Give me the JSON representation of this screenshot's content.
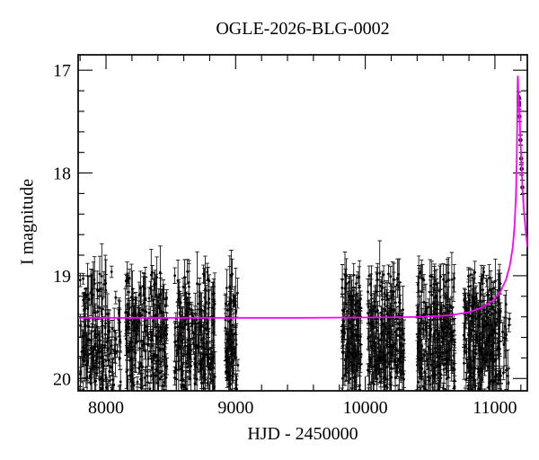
{
  "chart_data": {
    "type": "scatter",
    "title": "OGLE-2026-BLG-0002",
    "xlabel": "HJD - 2450000",
    "ylabel": "I magnitude",
    "xlim": [
      7785,
      11250
    ],
    "ylim_mag": [
      20.12,
      16.85
    ],
    "y_axis_inverted": true,
    "x_ticks_major": [
      8000,
      9000,
      10000,
      11000
    ],
    "x_tick_minor_step": 200,
    "y_ticks_major": [
      17,
      18,
      19,
      20
    ],
    "y_tick_minor_step": 0.2,
    "baseline_mag": 19.41,
    "peak_mag": 17.06,
    "peak_hjd": 11176,
    "colors": {
      "model_curve": "#ff00ff",
      "data_points": "#000000",
      "background": "#ffffff",
      "frame": "#000000"
    },
    "seasons": [
      {
        "hjd_start": 7800,
        "hjd_end": 8115,
        "n": 190
      },
      {
        "hjd_start": 8150,
        "hjd_end": 8470,
        "n": 230
      },
      {
        "hjd_start": 8530,
        "hjd_end": 8840,
        "n": 230
      },
      {
        "hjd_start": 8920,
        "hjd_end": 9020,
        "n": 85
      },
      {
        "hjd_start": 9820,
        "hjd_end": 9970,
        "n": 140
      },
      {
        "hjd_start": 10020,
        "hjd_end": 10300,
        "n": 240
      },
      {
        "hjd_start": 10400,
        "hjd_end": 10690,
        "n": 250
      },
      {
        "hjd_start": 10760,
        "hjd_end": 11048,
        "n": 265
      },
      {
        "hjd_start": 11055,
        "hjd_end": 11120,
        "n": 14
      }
    ],
    "season_mag_mean": 19.63,
    "season_mag_sigma": 0.32,
    "model_curve": [
      [
        7785,
        19.41
      ],
      [
        9500,
        19.41
      ],
      [
        10200,
        19.405
      ],
      [
        10450,
        19.4
      ],
      [
        10650,
        19.385
      ],
      [
        10800,
        19.355
      ],
      [
        10900,
        19.31
      ],
      [
        10980,
        19.245
      ],
      [
        11040,
        19.16
      ],
      [
        11085,
        19.04
      ],
      [
        11115,
        18.9
      ],
      [
        11138,
        18.72
      ],
      [
        11152,
        18.5
      ],
      [
        11162,
        18.22
      ],
      [
        11168,
        17.9
      ],
      [
        11172,
        17.5
      ],
      [
        11174.5,
        17.18
      ],
      [
        11176,
        17.06
      ],
      [
        11178,
        17.1
      ],
      [
        11181,
        17.22
      ],
      [
        11186,
        17.32
      ],
      [
        11191,
        17.47
      ],
      [
        11197,
        17.68
      ],
      [
        11204,
        17.89
      ],
      [
        11212,
        18.13
      ],
      [
        11222,
        18.34
      ],
      [
        11233,
        18.5
      ],
      [
        11250,
        18.72
      ]
    ],
    "event_points": [
      {
        "hjd": 11183,
        "mag": 17.26,
        "err": 0.05
      },
      {
        "hjd": 11185,
        "mag": 17.31,
        "err": 0.04
      },
      {
        "hjd": 11187,
        "mag": 17.33,
        "err": 0.05
      },
      {
        "hjd": 11190,
        "mag": 17.45,
        "err": 0.05
      },
      {
        "hjd": 11197,
        "mag": 17.68,
        "err": 0.05
      },
      {
        "hjd": 11203,
        "mag": 17.86,
        "err": 0.06
      },
      {
        "hjd": 11206,
        "mag": 17.96,
        "err": 0.06
      },
      {
        "hjd": 11212,
        "mag": 18.14,
        "err": 0.07
      }
    ]
  }
}
